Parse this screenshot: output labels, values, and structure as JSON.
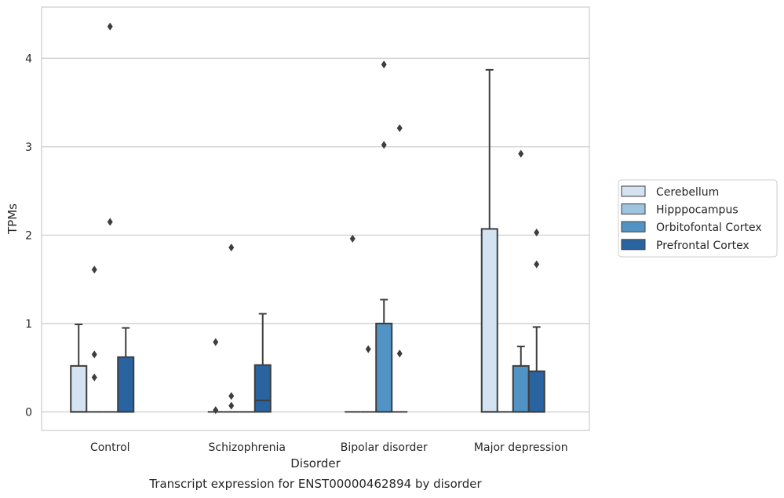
{
  "chart_data": {
    "type": "box",
    "xlabel": "Disorder",
    "ylabel": "TPMs",
    "caption": "Transcript expression for ENST00000462894 by disorder",
    "ylim": [
      -0.21,
      4.58
    ],
    "yticks": [
      "0",
      "1",
      "2",
      "3",
      "4"
    ],
    "grid": "horizontal",
    "legend_position": "right",
    "categories": [
      "Control",
      "Schizophrenia",
      "Bipolar disorder",
      "Major depression"
    ],
    "series": [
      {
        "name": "Cerebellum",
        "color": "#d4e3f1",
        "boxes": [
          {
            "min": 0,
            "q1": 0,
            "median": 0,
            "q3": 0.52,
            "max": 0.99,
            "outliers": []
          },
          {
            "min": 0,
            "q1": 0,
            "median": 0,
            "q3": 0,
            "max": 0,
            "outliers": [
              0.79,
              0.02
            ]
          },
          {
            "min": 0,
            "q1": 0,
            "median": 0,
            "q3": 0,
            "max": 0,
            "outliers": [
              1.96
            ]
          },
          {
            "min": 0,
            "q1": 0,
            "median": 0,
            "q3": 2.07,
            "max": 3.87,
            "outliers": []
          }
        ]
      },
      {
        "name": "Hipppocampus",
        "color": "#9ec4df",
        "boxes": [
          {
            "min": 0,
            "q1": 0,
            "median": 0,
            "q3": 0,
            "max": 0,
            "outliers": [
              1.61,
              0.65,
              0.39
            ]
          },
          {
            "min": 0,
            "q1": 0,
            "median": 0,
            "q3": 0,
            "max": 0,
            "outliers": [
              1.86,
              0.18,
              0.07
            ]
          },
          {
            "min": 0,
            "q1": 0,
            "median": 0,
            "q3": 0,
            "max": 0,
            "outliers": [
              0.71
            ]
          },
          {
            "min": 0,
            "q1": 0,
            "median": 0,
            "q3": 0,
            "max": 0,
            "outliers": []
          }
        ]
      },
      {
        "name": "Orbitofontal Cortex",
        "color": "#5193c4",
        "boxes": [
          {
            "min": 0,
            "q1": 0,
            "median": 0,
            "q3": 0,
            "max": 0,
            "outliers": [
              4.36,
              2.15
            ]
          },
          {
            "min": 0,
            "q1": 0,
            "median": 0,
            "q3": 0,
            "max": 0,
            "outliers": []
          },
          {
            "min": 0,
            "q1": 0,
            "median": 0,
            "q3": 1.0,
            "max": 1.27,
            "outliers": [
              3.93,
              3.02
            ]
          },
          {
            "min": 0,
            "q1": 0,
            "median": 0,
            "q3": 0.52,
            "max": 0.74,
            "outliers": [
              2.92
            ]
          }
        ]
      },
      {
        "name": "Prefrontal Cortex",
        "color": "#2a64a0",
        "boxes": [
          {
            "min": 0,
            "q1": 0,
            "median": 0,
            "q3": 0.62,
            "max": 0.95,
            "outliers": []
          },
          {
            "min": 0,
            "q1": 0,
            "median": 0.13,
            "q3": 0.53,
            "max": 1.11,
            "outliers": []
          },
          {
            "min": 0,
            "q1": 0,
            "median": 0,
            "q3": 0,
            "max": 0,
            "outliers": [
              3.21,
              0.66
            ]
          },
          {
            "min": 0,
            "q1": 0,
            "median": 0,
            "q3": 0.46,
            "max": 0.96,
            "outliers": [
              2.03,
              1.67
            ]
          }
        ]
      }
    ]
  }
}
